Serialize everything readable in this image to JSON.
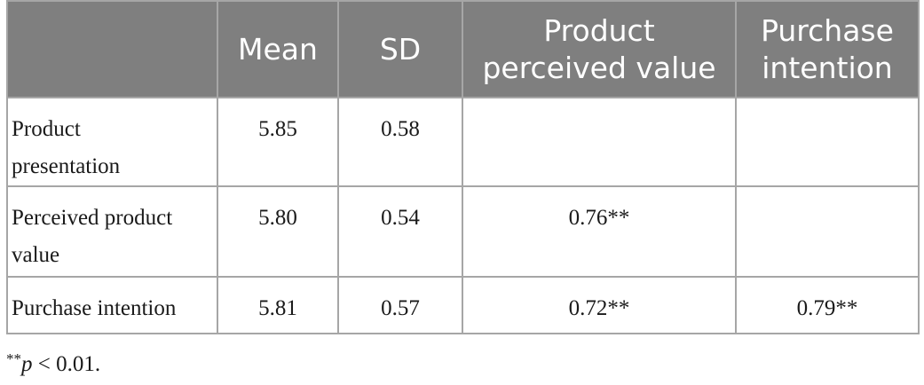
{
  "table": {
    "headers": [
      "",
      "Mean",
      "SD",
      "Product perceived value",
      "Purchase intention"
    ],
    "header_lines": {
      "ppv_line1": "Product",
      "ppv_line2": "perceived value",
      "pi_line1": "Purchase",
      "pi_line2": "intention"
    },
    "rows": [
      {
        "label_line1": "Product",
        "label_line2": "presentation",
        "mean": "5.85",
        "sd": "0.58",
        "product_perceived_value": "",
        "purchase_intention": ""
      },
      {
        "label_line1": "Perceived product",
        "label_line2": "value",
        "mean": "5.80",
        "sd": "0.54",
        "product_perceived_value": "0.76**",
        "purchase_intention": ""
      },
      {
        "label_line1": "Purchase intention",
        "label_line2": "",
        "mean": "5.81",
        "sd": "0.57",
        "product_perceived_value": "0.72**",
        "purchase_intention": "0.79**"
      }
    ]
  },
  "footnote": {
    "marker": "**",
    "variable": "p",
    "text": " < 0.01."
  },
  "colors": {
    "header_bg": "#7f7f7f",
    "header_text": "#ffffff",
    "border": "#a6a6a6"
  }
}
